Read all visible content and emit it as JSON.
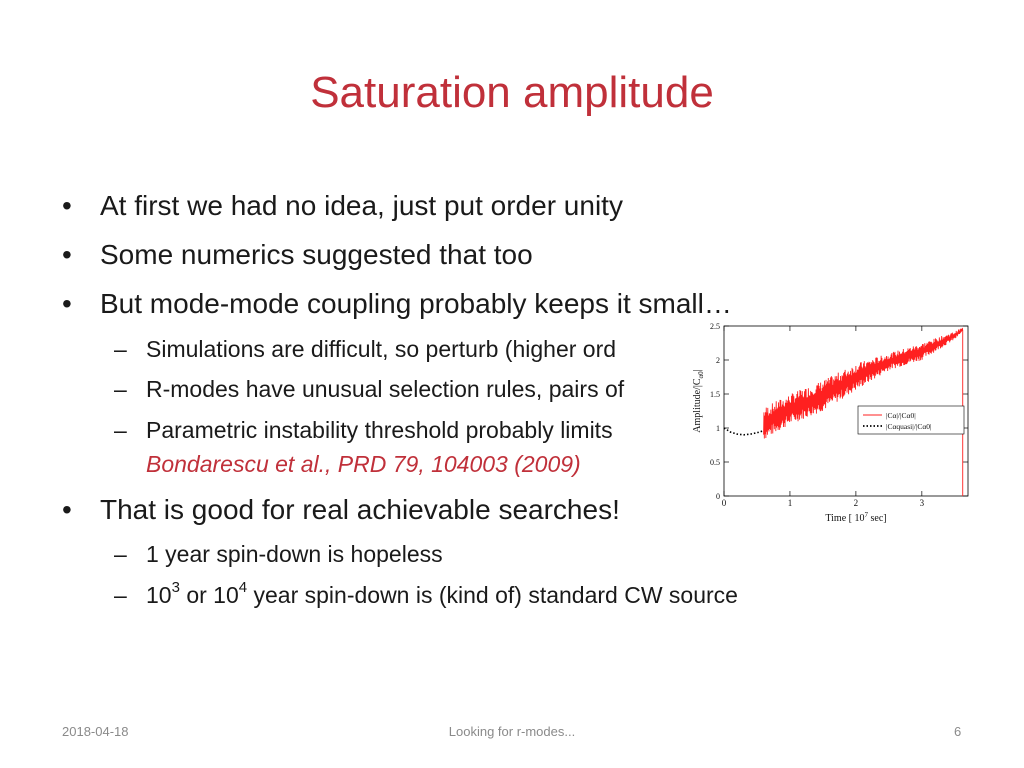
{
  "slide": {
    "title": "Saturation amplitude",
    "bullets": [
      "At first we had no idea, just put order unity",
      "Some numerics suggested that too",
      "But mode-mode coupling probably keeps it small…",
      "That is good for real achievable searches!"
    ],
    "sub1": [
      "Simulations are difficult, so perturb (higher ord",
      "R-modes have unusual selection rules, pairs of",
      "Parametric instability threshold probably limits"
    ],
    "reference": "Bondarescu et al., PRD 79, 104003 (2009)",
    "sub2_0": "1 year spin-down is hopeless",
    "sub2_1": {
      "pre": "10",
      "sup1": "3",
      "mid": " or 10",
      "sup2": "4",
      "post": " year spin-down is (kind of) standard CW source"
    },
    "dash_glyph": "–",
    "bullet_glyph": "•"
  },
  "chart_data": {
    "type": "line",
    "xlabel": "Time [ 10",
    "xlabel_sup": "7",
    "xlabel_tail": " sec]",
    "ylabel": "Amplitude/|C",
    "ylabel_sub": "α0",
    "ylabel_tail": "|",
    "xlim": [
      0,
      3.7
    ],
    "ylim": [
      0,
      2.5
    ],
    "xticks": [
      "0",
      "1",
      "2",
      "3"
    ],
    "yticks": [
      "0",
      "0.5",
      "1",
      "1.5",
      "2",
      "2.5"
    ],
    "legend": {
      "placement": "right",
      "entries": [
        {
          "name": "|Cα|/|Cα0|",
          "color": "#ff2020",
          "style": "solid"
        },
        {
          "name": "|Cαquasi|/|Cα0|",
          "color": "#000000",
          "style": "dotted"
        }
      ]
    },
    "series": [
      {
        "name": "|Cα|/|Cα0|",
        "color": "#ff2020",
        "envelope_x": [
          0.6,
          1.0,
          1.5,
          2.0,
          2.5,
          3.0,
          3.5,
          3.62
        ],
        "envelope_low": [
          0.82,
          1.05,
          1.25,
          1.55,
          1.85,
          2.0,
          2.3,
          2.42
        ],
        "envelope_high": [
          1.3,
          1.5,
          1.7,
          1.95,
          2.1,
          2.25,
          2.42,
          2.48
        ],
        "drop_x": 3.62
      },
      {
        "name": "|Cαquasi|/|Cα0|",
        "color": "#000000",
        "x": [
          0.0,
          0.1,
          0.2,
          0.3,
          0.4,
          0.5,
          0.6
        ],
        "y": [
          1.0,
          0.94,
          0.91,
          0.9,
          0.91,
          0.93,
          0.96
        ]
      }
    ]
  },
  "footer": {
    "date": "2018-04-18",
    "center": "Looking for r-modes...",
    "page": "6"
  }
}
